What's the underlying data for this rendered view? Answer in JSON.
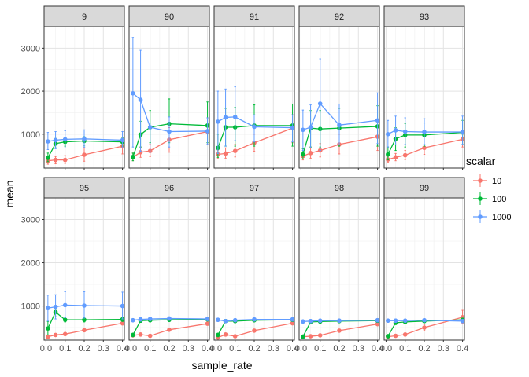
{
  "chart_data": {
    "type": "line",
    "facet_variable": "panel",
    "panels": [
      "9",
      "90",
      "91",
      "92",
      "93",
      "95",
      "96",
      "97",
      "98",
      "99"
    ],
    "xlabel": "sample_rate",
    "ylabel": "mean",
    "x_ticks": [
      "0.0",
      "0.1",
      "0.2",
      "0.3",
      "0.4"
    ],
    "y_ticks": [
      "1000",
      "2000",
      "3000"
    ],
    "xlim": [
      -0.01,
      0.41
    ],
    "ylim": [
      210,
      3500
    ],
    "legend": {
      "title": "scalar",
      "position": "right",
      "entries": [
        "10",
        "100",
        "1000"
      ]
    },
    "colors": {
      "10": "#F8766D",
      "100": "#00BA38",
      "1000": "#619CFF"
    },
    "grid": true,
    "x": [
      0.01,
      0.05,
      0.1,
      0.2,
      0.4
    ],
    "data": {
      "9": {
        "10": {
          "mean": [
            380,
            400,
            400,
            520,
            720
          ],
          "lo": [
            300,
            310,
            320,
            370,
            540
          ],
          "hi": [
            460,
            480,
            500,
            680,
            920
          ]
        },
        "100": {
          "mean": [
            450,
            780,
            820,
            840,
            820
          ],
          "lo": [
            360,
            680,
            720,
            740,
            720
          ],
          "hi": [
            560,
            900,
            920,
            940,
            920
          ]
        },
        "1000": {
          "mean": [
            830,
            860,
            880,
            890,
            860
          ],
          "lo": [
            640,
            660,
            680,
            700,
            680
          ],
          "hi": [
            1040,
            1060,
            1080,
            1100,
            1060
          ]
        }
      },
      "90": {
        "10": {
          "mean": [
            460,
            580,
            610,
            870,
            1060
          ],
          "lo": [
            380,
            460,
            480,
            580,
            760
          ],
          "hi": [
            560,
            700,
            760,
            1150,
            1380
          ]
        },
        "100": {
          "mean": [
            470,
            990,
            1160,
            1240,
            1200
          ],
          "lo": [
            380,
            700,
            800,
            800,
            800
          ],
          "hi": [
            560,
            1300,
            1550,
            1820,
            1750
          ]
        },
        "1000": {
          "mean": [
            1950,
            1800,
            1160,
            1060,
            1070
          ],
          "lo": [
            700,
            600,
            580,
            700,
            760
          ],
          "hi": [
            3250,
            2950,
            1260,
            1400,
            1380
          ]
        }
      },
      "91": {
        "10": {
          "mean": [
            530,
            550,
            610,
            800,
            1140
          ],
          "lo": [
            430,
            440,
            470,
            600,
            800
          ],
          "hi": [
            630,
            680,
            760,
            1000,
            1450
          ]
        },
        "100": {
          "mean": [
            680,
            1160,
            1160,
            1200,
            1200
          ],
          "lo": [
            460,
            720,
            720,
            720,
            720
          ],
          "hi": [
            1000,
            1600,
            1620,
            1680,
            1700
          ]
        },
        "1000": {
          "mean": [
            1290,
            1390,
            1400,
            1170,
            1150
          ],
          "lo": [
            550,
            720,
            850,
            820,
            820
          ],
          "hi": [
            2000,
            2050,
            2100,
            1450,
            1450
          ]
        }
      },
      "92": {
        "10": {
          "mean": [
            490,
            560,
            620,
            760,
            940
          ],
          "lo": [
            400,
            440,
            470,
            540,
            620
          ],
          "hi": [
            580,
            700,
            780,
            1000,
            1280
          ]
        },
        "100": {
          "mean": [
            530,
            1140,
            1120,
            1140,
            1180
          ],
          "lo": [
            420,
            700,
            700,
            720,
            720
          ],
          "hi": [
            660,
            1550,
            1550,
            1600,
            1660
          ]
        },
        "1000": {
          "mean": [
            1100,
            1160,
            1710,
            1210,
            1320
          ],
          "lo": [
            620,
            680,
            620,
            750,
            780
          ],
          "hi": [
            1560,
            1680,
            2750,
            1700,
            1960
          ]
        }
      },
      "93": {
        "10": {
          "mean": [
            410,
            460,
            510,
            680,
            880
          ],
          "lo": [
            350,
            380,
            410,
            530,
            700
          ],
          "hi": [
            480,
            550,
            620,
            840,
            1060
          ]
        },
        "100": {
          "mean": [
            530,
            890,
            980,
            980,
            1040
          ],
          "lo": [
            400,
            620,
            700,
            720,
            760
          ],
          "hi": [
            700,
            1150,
            1250,
            1260,
            1320
          ]
        },
        "1000": {
          "mean": [
            1000,
            1090,
            1060,
            1050,
            1050
          ],
          "lo": [
            700,
            750,
            760,
            760,
            760
          ],
          "hi": [
            1320,
            1420,
            1380,
            1360,
            1420
          ]
        }
      },
      "95": {
        "10": {
          "mean": [
            290,
            330,
            350,
            440,
            600
          ],
          "lo": [
            260,
            300,
            320,
            410,
            560
          ],
          "hi": [
            320,
            360,
            390,
            480,
            650
          ]
        },
        "100": {
          "mean": [
            480,
            860,
            680,
            680,
            690
          ],
          "lo": [
            330,
            750,
            630,
            630,
            640
          ],
          "hi": [
            640,
            980,
            730,
            730,
            740
          ]
        },
        "1000": {
          "mean": [
            950,
            980,
            1020,
            1010,
            1000
          ],
          "lo": [
            650,
            700,
            730,
            720,
            700
          ],
          "hi": [
            1250,
            1260,
            1330,
            1330,
            1320
          ]
        }
      },
      "96": {
        "10": {
          "mean": [
            320,
            340,
            310,
            450,
            590
          ],
          "lo": [
            290,
            310,
            280,
            420,
            560
          ],
          "hi": [
            350,
            370,
            340,
            480,
            620
          ]
        },
        "100": {
          "mean": [
            330,
            660,
            670,
            680,
            690
          ],
          "lo": [
            290,
            620,
            630,
            640,
            650
          ],
          "hi": [
            370,
            700,
            710,
            720,
            730
          ]
        },
        "1000": {
          "mean": [
            670,
            690,
            700,
            710,
            700
          ],
          "lo": [
            630,
            650,
            660,
            670,
            660
          ],
          "hi": [
            710,
            730,
            740,
            750,
            740
          ]
        }
      },
      "97": {
        "10": {
          "mean": [
            270,
            340,
            300,
            430,
            600
          ],
          "lo": [
            240,
            310,
            270,
            400,
            570
          ],
          "hi": [
            300,
            370,
            330,
            460,
            630
          ]
        },
        "100": {
          "mean": [
            330,
            650,
            650,
            670,
            680
          ],
          "lo": [
            290,
            610,
            610,
            630,
            640
          ],
          "hi": [
            370,
            690,
            690,
            710,
            720
          ]
        },
        "1000": {
          "mean": [
            680,
            650,
            670,
            690,
            690
          ],
          "lo": [
            640,
            610,
            630,
            650,
            650
          ],
          "hi": [
            720,
            690,
            710,
            730,
            730
          ]
        }
      },
      "98": {
        "10": {
          "mean": [
            290,
            300,
            320,
            430,
            580
          ],
          "lo": [
            260,
            270,
            290,
            400,
            550
          ],
          "hi": [
            320,
            330,
            350,
            460,
            610
          ]
        },
        "100": {
          "mean": [
            290,
            630,
            640,
            650,
            660
          ],
          "lo": [
            260,
            590,
            600,
            610,
            620
          ],
          "hi": [
            320,
            670,
            680,
            690,
            700
          ]
        },
        "1000": {
          "mean": [
            640,
            650,
            660,
            660,
            670
          ],
          "lo": [
            600,
            610,
            620,
            620,
            630
          ],
          "hi": [
            680,
            690,
            700,
            700,
            710
          ]
        }
      },
      "99": {
        "10": {
          "mean": [
            290,
            310,
            340,
            500,
            740
          ],
          "lo": [
            260,
            280,
            310,
            440,
            600
          ],
          "hi": [
            320,
            340,
            370,
            560,
            900
          ]
        },
        "100": {
          "mean": [
            300,
            610,
            630,
            650,
            680
          ],
          "lo": [
            260,
            570,
            590,
            610,
            640
          ],
          "hi": [
            340,
            650,
            670,
            690,
            720
          ]
        },
        "1000": {
          "mean": [
            660,
            660,
            660,
            670,
            650
          ],
          "lo": [
            620,
            620,
            620,
            630,
            610
          ],
          "hi": [
            700,
            700,
            700,
            710,
            690
          ]
        }
      }
    }
  }
}
